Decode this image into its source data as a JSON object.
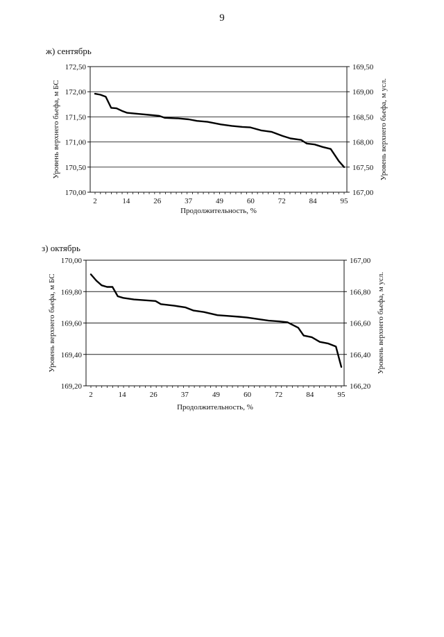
{
  "page": {
    "number": "9"
  },
  "chart_data": [
    {
      "type": "line",
      "label": "ж) сентябрь",
      "x": [
        2,
        4,
        6,
        8,
        10,
        12,
        14,
        18,
        22,
        26,
        28,
        33,
        37,
        40,
        44,
        49,
        53,
        57,
        60,
        64,
        68,
        72,
        75,
        79,
        81,
        84,
        87,
        90,
        93,
        95
      ],
      "values": [
        171.96,
        171.94,
        171.9,
        171.68,
        171.67,
        171.62,
        171.58,
        171.56,
        171.54,
        171.52,
        171.48,
        171.47,
        171.45,
        171.42,
        171.4,
        171.35,
        171.32,
        171.3,
        171.29,
        171.23,
        171.2,
        171.12,
        171.07,
        171.04,
        170.97,
        170.95,
        170.9,
        170.86,
        170.62,
        170.5
      ],
      "xlabel": "Продолжительность, %",
      "ylabel_left": "Уровень верхнего бьефа, м БС",
      "ylabel_right": "Уровень верхнего бьефа, м  усл.",
      "x_range": [
        2,
        95
      ],
      "x_ticks": [
        "2",
        "14",
        "26",
        "37",
        "49",
        "60",
        "72",
        "84",
        "95"
      ],
      "ylim_left": [
        170.0,
        172.5
      ],
      "ylim_right": [
        167.0,
        169.5
      ],
      "y_ticks_left": [
        "170,00",
        "170,50",
        "171,00",
        "171,50",
        "172,00",
        "172,50"
      ],
      "y_ticks_right": [
        "167,00",
        "167,50",
        "168,00",
        "168,50",
        "169,00",
        "169,50"
      ],
      "grid": true
    },
    {
      "type": "line",
      "label": "з) октябрь",
      "x": [
        2,
        4,
        6,
        8,
        10,
        12,
        14,
        18,
        22,
        26,
        28,
        33,
        37,
        40,
        44,
        49,
        53,
        57,
        60,
        64,
        68,
        72,
        75,
        79,
        81,
        84,
        87,
        90,
        93,
        95
      ],
      "values": [
        169.91,
        169.87,
        169.84,
        169.83,
        169.83,
        169.77,
        169.76,
        169.75,
        169.745,
        169.74,
        169.72,
        169.71,
        169.7,
        169.68,
        169.67,
        169.65,
        169.645,
        169.64,
        169.635,
        169.625,
        169.615,
        169.61,
        169.605,
        169.57,
        169.52,
        169.51,
        169.48,
        169.47,
        169.45,
        169.32
      ],
      "xlabel": "Продолжительность, %",
      "ylabel_left": "Уровень верхнего бьефа, м БС",
      "ylabel_right": "Уровень верхнего бьефа, м  усл.",
      "x_range": [
        2,
        95
      ],
      "x_ticks": [
        "2",
        "14",
        "26",
        "37",
        "49",
        "60",
        "72",
        "84",
        "95"
      ],
      "ylim_left": [
        169.2,
        170.0
      ],
      "ylim_right": [
        166.2,
        167.0
      ],
      "y_ticks_left": [
        "169,20",
        "169,40",
        "169,60",
        "169,80",
        "170,00"
      ],
      "y_ticks_right": [
        "166,20",
        "166,40",
        "166,60",
        "166,80",
        "167,00"
      ],
      "grid": true
    }
  ]
}
